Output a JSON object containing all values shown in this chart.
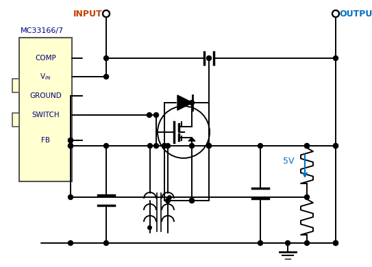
{
  "background_color": "#ffffff",
  "ic_label": "MC33166/7",
  "ic_fill": "#FFFFD0",
  "ic_edge": "#555555",
  "pin_labels": [
    "COMP",
    "V\\u2093",
    "GROUND",
    "SWITCH",
    "FB"
  ],
  "title_input": "INPUT",
  "title_output": "OUTPUT",
  "line_color": "#000000",
  "dot_color": "#000000",
  "voltage_color": "#0070c0",
  "voltage_label": "5V",
  "input_label_color": "#c04000",
  "output_label_color": "#0070c0"
}
